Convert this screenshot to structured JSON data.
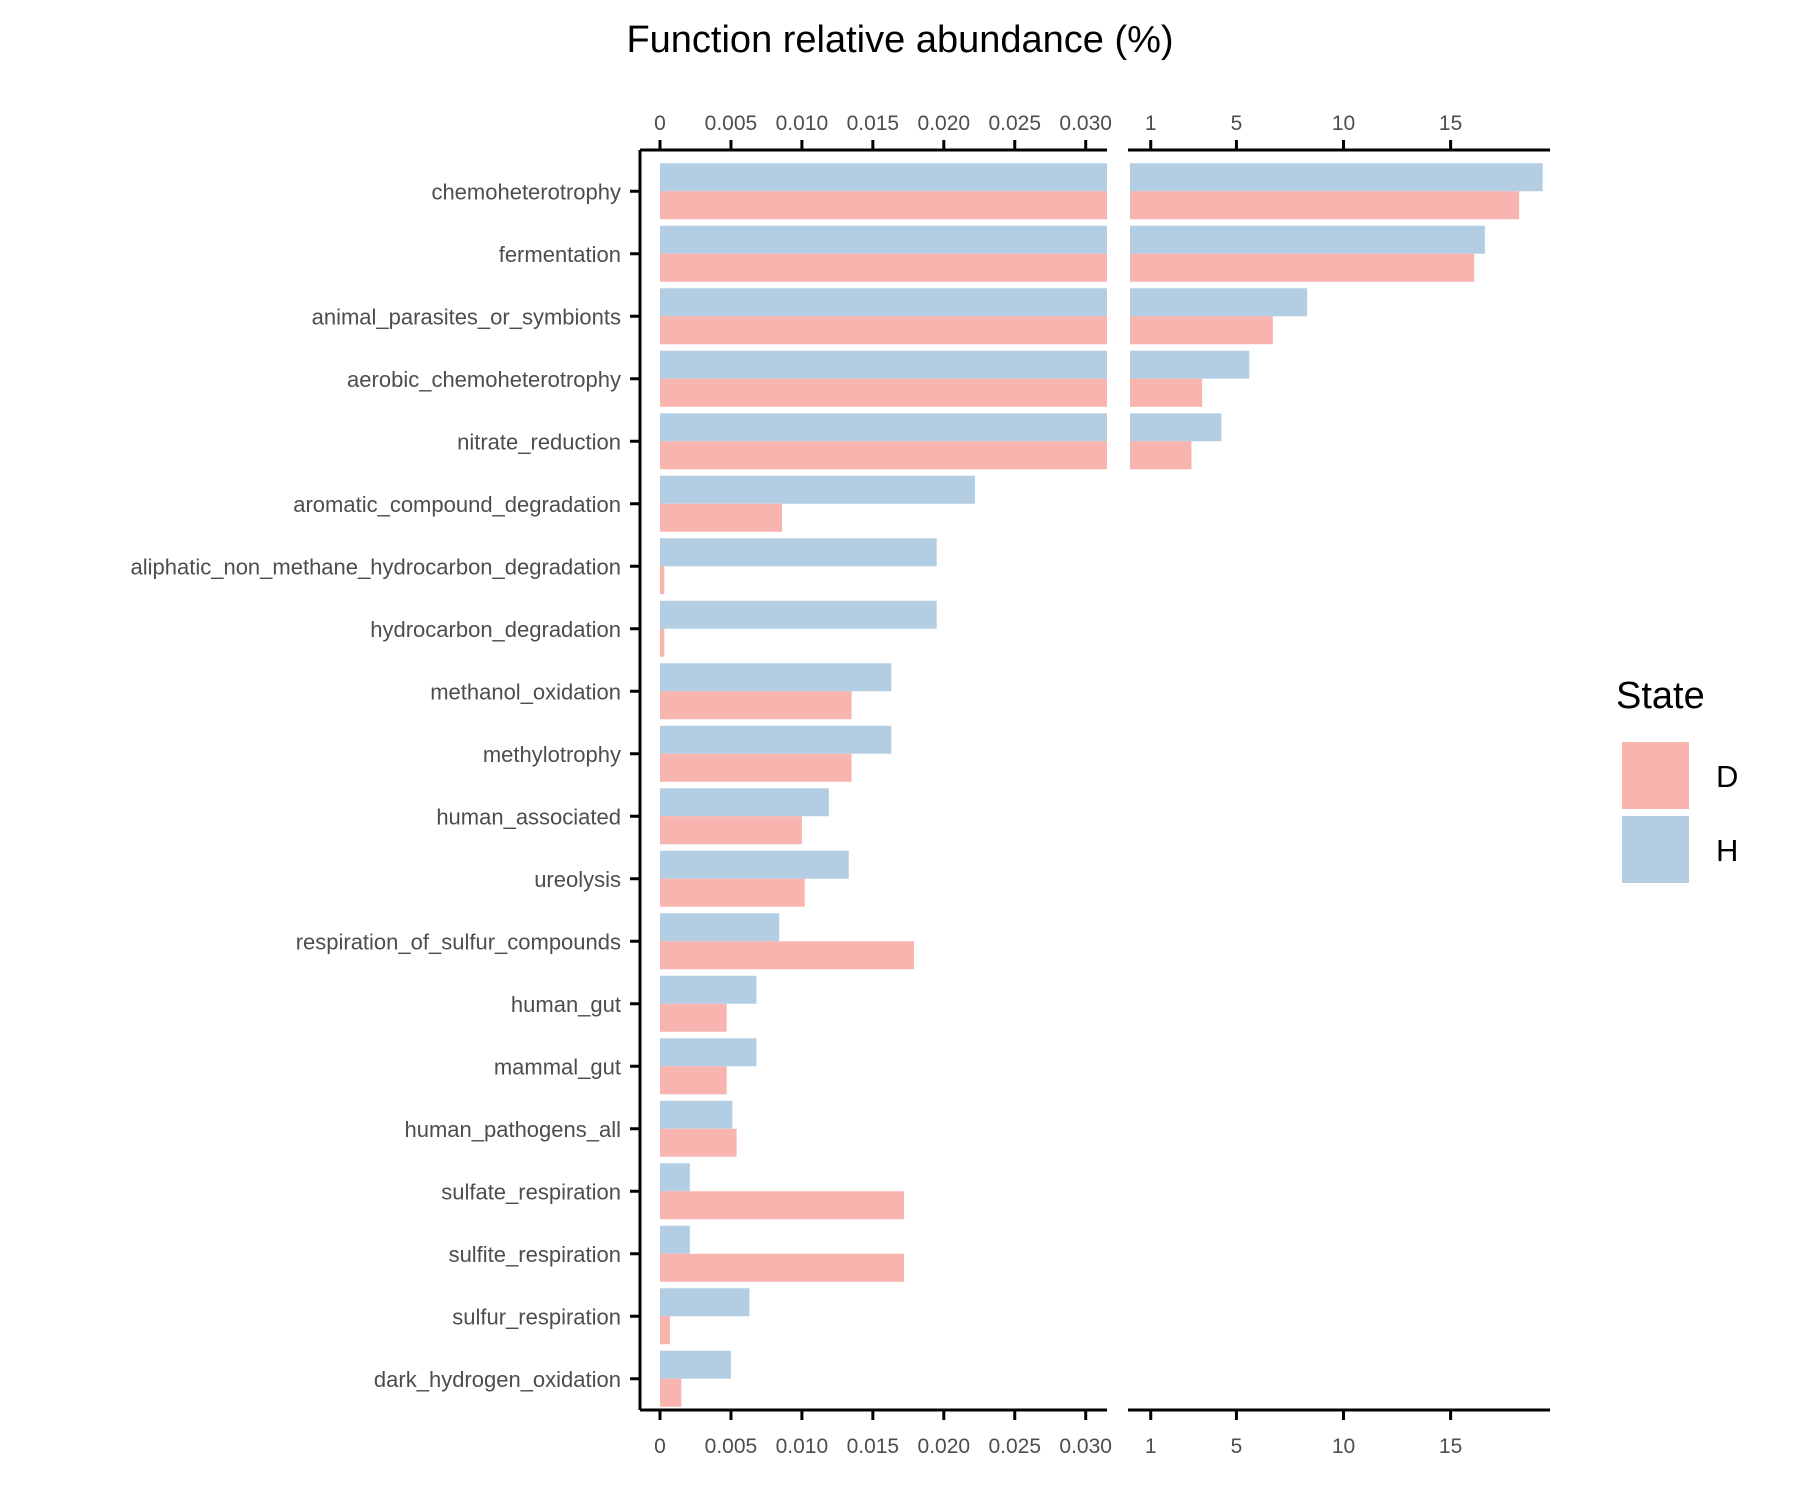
{
  "chart_data": {
    "type": "bar",
    "orientation": "horizontal",
    "title": "Function relative abundance (%)",
    "xlabel": "",
    "ylabel": "",
    "grid": false,
    "legend_position": "right",
    "axis_break": true,
    "panels": [
      {
        "xlim": [
          0,
          0.0315
        ],
        "ticks": [
          0,
          0.005,
          0.01,
          0.015,
          0.02,
          0.025,
          0.03
        ],
        "tick_labels": [
          "0",
          "0.005",
          "0.010",
          "0.015",
          "0.020",
          "0.025",
          "0.030"
        ]
      },
      {
        "xlim": [
          0.0315,
          19.5
        ],
        "ticks": [
          1,
          5,
          10,
          15
        ],
        "tick_labels": [
          "1",
          "5",
          "10",
          "15"
        ]
      }
    ],
    "categories": [
      "chemoheterotrophy",
      "fermentation",
      "animal_parasites_or_symbionts",
      "aerobic_chemoheterotrophy",
      "nitrate_reduction",
      "aromatic_compound_degradation",
      "aliphatic_non_methane_hydrocarbon_degradation",
      "hydrocarbon_degradation",
      "methanol_oxidation",
      "methylotrophy",
      "human_associated",
      "ureolysis",
      "respiration_of_sulfur_compounds",
      "human_gut",
      "mammal_gut",
      "human_pathogens_all",
      "sulfate_respiration",
      "sulfite_respiration",
      "sulfur_respiration",
      "dark_hydrogen_oxidation"
    ],
    "legend_title": "State",
    "series": [
      {
        "name": "D",
        "color": "#F8B4AF",
        "values": [
          18.2,
          16.1,
          6.7,
          3.4,
          2.9,
          0.0086,
          0.0003,
          0.0003,
          0.0135,
          0.0135,
          0.01,
          0.0102,
          0.0179,
          0.0047,
          0.0047,
          0.0054,
          0.0172,
          0.0172,
          0.0007,
          0.0015
        ]
      },
      {
        "name": "H",
        "color": "#B3CDE3",
        "values": [
          19.3,
          16.6,
          8.3,
          5.6,
          4.3,
          0.0222,
          0.0195,
          0.0195,
          0.0163,
          0.0163,
          0.0119,
          0.0133,
          0.0084,
          0.0068,
          0.0068,
          0.0051,
          0.0021,
          0.0021,
          0.0063,
          0.005
        ]
      }
    ]
  }
}
